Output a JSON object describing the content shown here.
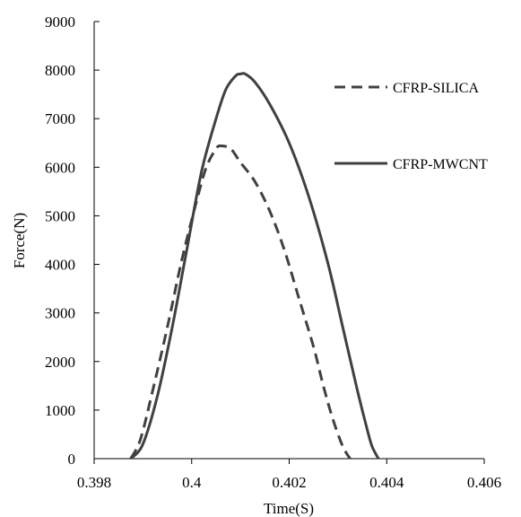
{
  "chart_data": {
    "type": "line",
    "title": "",
    "xlabel": "Time(S)",
    "ylabel": "Force(N)",
    "xlim": [
      0.398,
      0.406
    ],
    "ylim": [
      0,
      9000
    ],
    "x_ticks": [
      "0.398",
      "0.4",
      "0.402",
      "0.404",
      "0.406"
    ],
    "y_ticks": [
      "0",
      "1000",
      "2000",
      "3000",
      "4000",
      "5000",
      "6000",
      "7000",
      "8000",
      "9000"
    ],
    "grid": false,
    "legend_position": "right",
    "series": [
      {
        "name": "CFRP-SILICA",
        "style": "dashed",
        "color": "#404040",
        "x": [
          0.39875,
          0.39895,
          0.3992,
          0.3995,
          0.3998,
          0.4001,
          0.4003,
          0.4005,
          0.4006,
          0.4008,
          0.401,
          0.4013,
          0.4016,
          0.4019,
          0.4022,
          0.4025,
          0.4027,
          0.4029,
          0.4031,
          0.40325
        ],
        "y": [
          0,
          400,
          1400,
          2700,
          4100,
          5300,
          6000,
          6380,
          6440,
          6380,
          6100,
          5700,
          5100,
          4300,
          3300,
          2300,
          1500,
          800,
          250,
          0
        ]
      },
      {
        "name": "CFRP-MWCNT",
        "style": "solid",
        "color": "#404040",
        "x": [
          0.39875,
          0.399,
          0.3993,
          0.3996,
          0.3999,
          0.4002,
          0.4005,
          0.4007,
          0.4009,
          0.401,
          0.4011,
          0.4013,
          0.4016,
          0.402,
          0.4024,
          0.4028,
          0.4031,
          0.4034,
          0.4036,
          0.4037,
          0.40383
        ],
        "y": [
          0,
          300,
          1300,
          2700,
          4300,
          5900,
          7000,
          7600,
          7880,
          7920,
          7920,
          7750,
          7300,
          6500,
          5400,
          4000,
          2700,
          1400,
          600,
          250,
          0
        ]
      }
    ]
  }
}
